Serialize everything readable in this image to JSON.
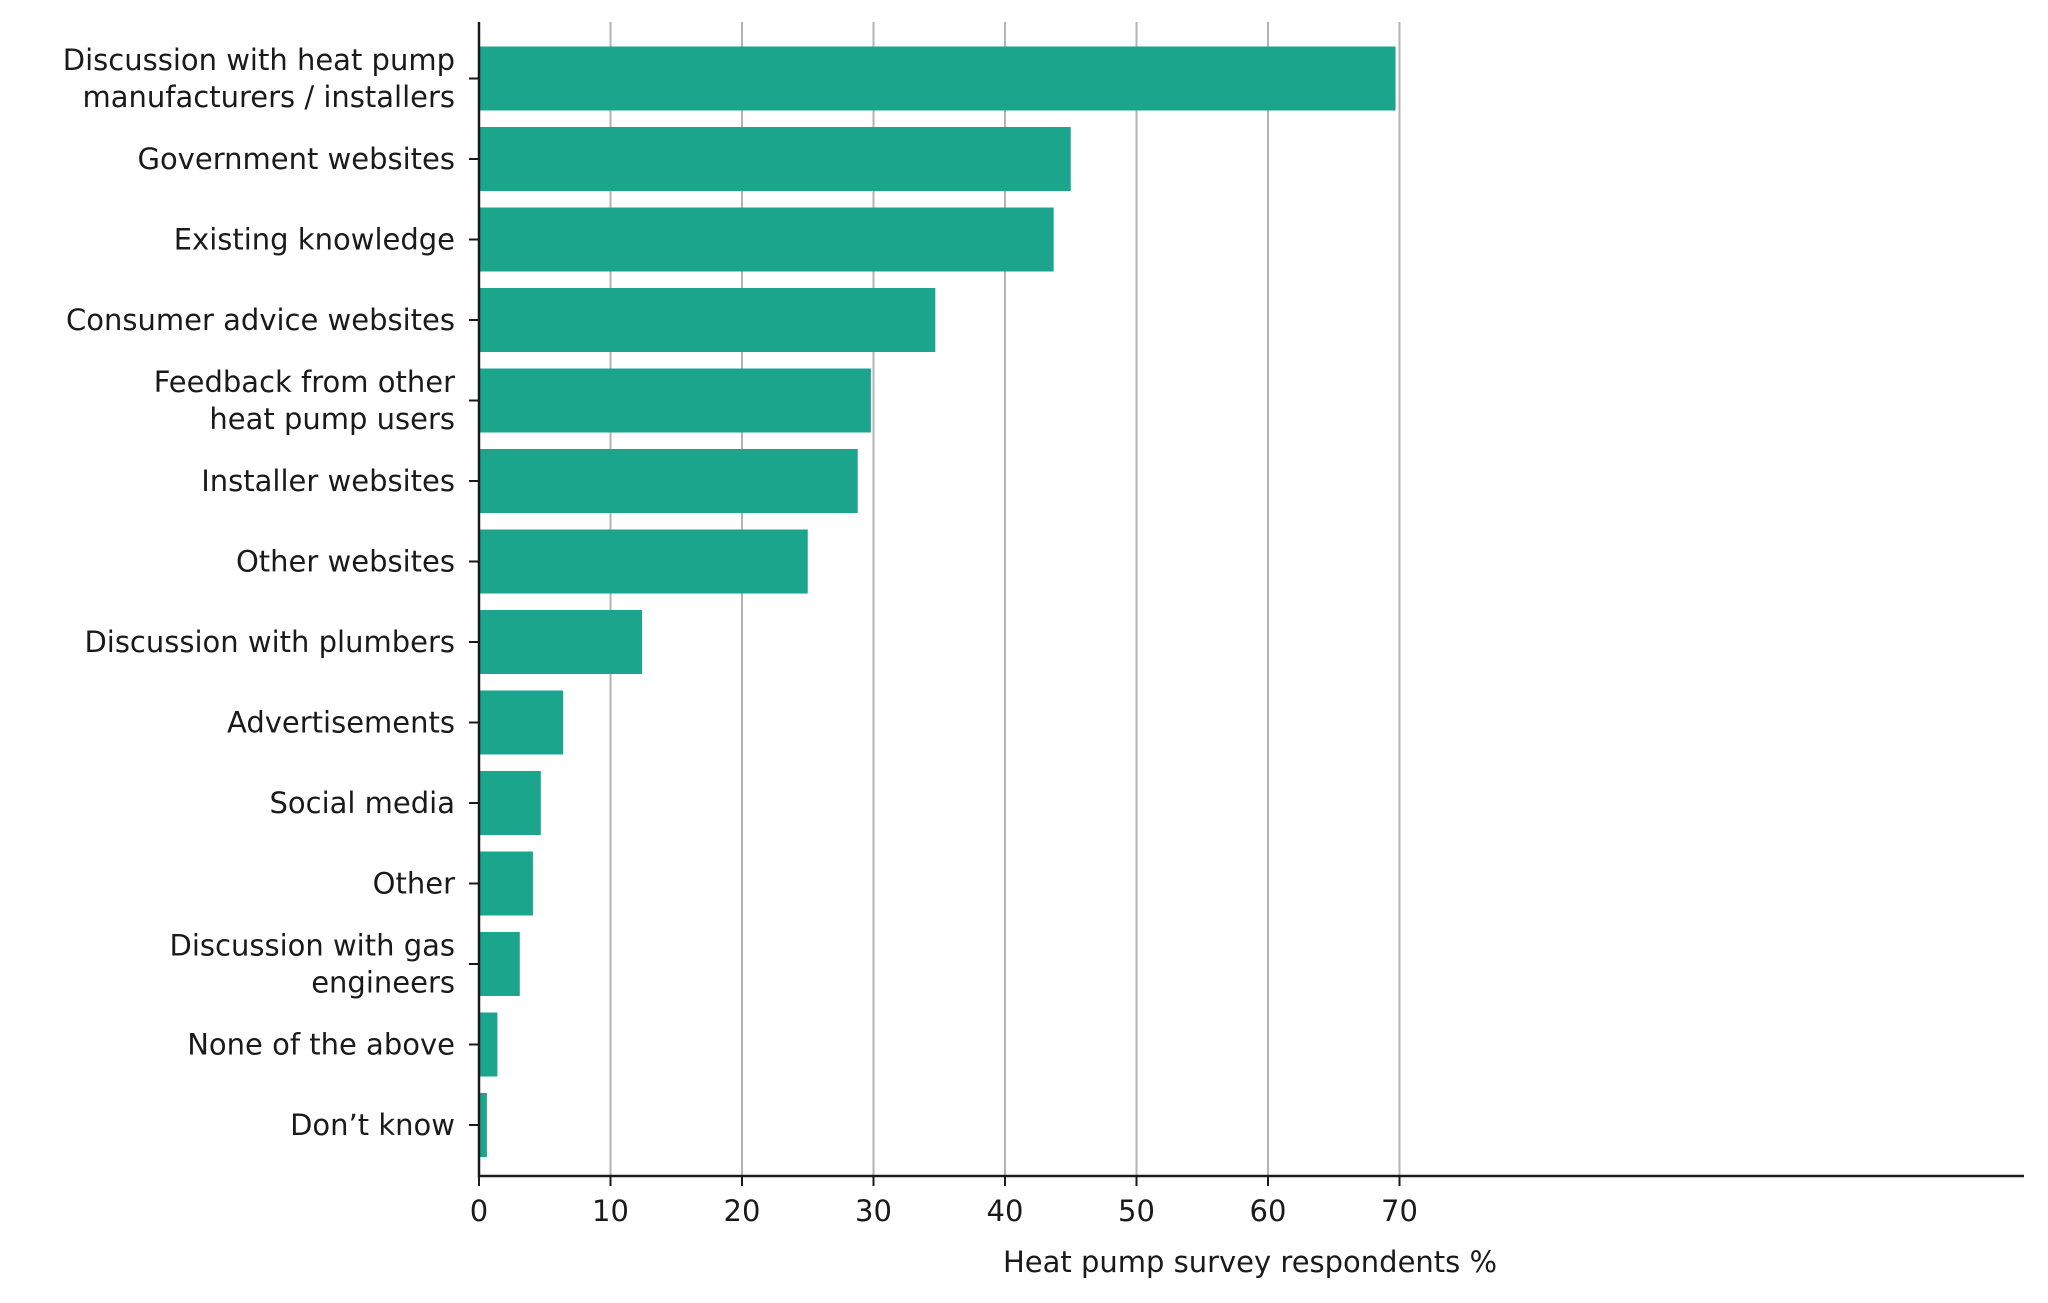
{
  "chart_data": {
    "type": "bar",
    "orientation": "horizontal",
    "categories": [
      "Discussion with heat pump manufacturers / installers",
      "Government websites",
      "Existing knowledge",
      "Consumer advice websites",
      "Feedback from other heat pump users",
      "Installer websites",
      "Other websites",
      "Discussion with plumbers",
      "Advertisements",
      "Social media",
      "Other",
      "Discussion with gas engineers",
      "None of the above",
      "Don't know"
    ],
    "category_label_lines": [
      [
        "Discussion with heat pump",
        "manufacturers / installers"
      ],
      [
        "Government websites"
      ],
      [
        "Existing knowledge"
      ],
      [
        "Consumer advice websites"
      ],
      [
        "Feedback from other",
        "heat pump users"
      ],
      [
        "Installer websites"
      ],
      [
        "Other websites"
      ],
      [
        "Discussion with plumbers"
      ],
      [
        "Advertisements"
      ],
      [
        "Social media"
      ],
      [
        "Other"
      ],
      [
        "Discussion with gas",
        "engineers"
      ],
      [
        "None of the above"
      ],
      [
        "Don’t know"
      ]
    ],
    "values": [
      69.7,
      45.0,
      43.7,
      34.7,
      29.8,
      28.8,
      25.0,
      12.4,
      6.4,
      4.7,
      4.1,
      3.1,
      1.4,
      0.6
    ],
    "xticks": [
      0,
      10,
      20,
      30,
      40,
      50,
      60,
      70
    ],
    "xlim": [
      0,
      73
    ],
    "xlabel": "Heat pump survey respondents %",
    "ylabel": "",
    "title": "",
    "grid": "vertical",
    "legend": "none",
    "colors": {
      "bar": "#1ba58c",
      "grid": "#b3b3b3",
      "axis": "#1a1a1a",
      "text": "#1a1a1a"
    }
  }
}
